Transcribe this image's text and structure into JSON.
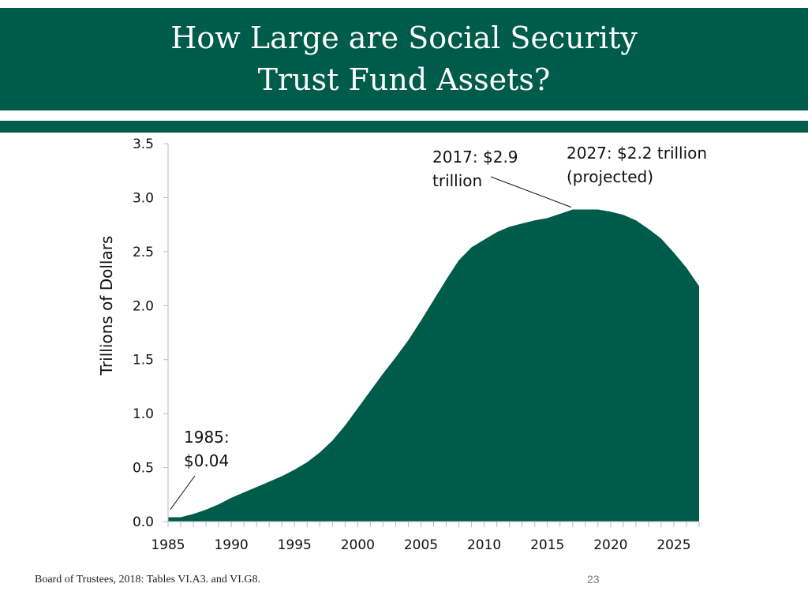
{
  "slide": {
    "title_line1": "How Large are Social Security",
    "title_line2": "Trust Fund Assets?",
    "source": "Board of Trustees, 2018: Tables VI.A3. and VI.G8.",
    "page_number": "23",
    "colors": {
      "brand_green": "#005c4a",
      "fill": "#005c4a"
    }
  },
  "chart_data": {
    "type": "area",
    "title": "",
    "xlabel": "",
    "ylabel": "Trillions of Dollars",
    "xlim": [
      1985,
      2027
    ],
    "ylim": [
      0,
      3.5
    ],
    "yticks": [
      "0.0",
      "0.5",
      "1.0",
      "1.5",
      "2.0",
      "2.5",
      "3.0",
      "3.5"
    ],
    "xticks": [
      "1985",
      "1990",
      "1995",
      "2000",
      "2005",
      "2010",
      "2015",
      "2020",
      "2025"
    ],
    "grid": false,
    "x": [
      1985,
      1986,
      1987,
      1988,
      1989,
      1990,
      1991,
      1992,
      1993,
      1994,
      1995,
      1996,
      1997,
      1998,
      1999,
      2000,
      2001,
      2002,
      2003,
      2004,
      2005,
      2006,
      2007,
      2008,
      2009,
      2010,
      2011,
      2012,
      2013,
      2014,
      2015,
      2016,
      2017,
      2018,
      2019,
      2020,
      2021,
      2022,
      2023,
      2024,
      2025,
      2026,
      2027
    ],
    "series": [
      {
        "values": [
          0.04,
          0.04,
          0.07,
          0.11,
          0.16,
          0.22,
          0.27,
          0.32,
          0.37,
          0.42,
          0.48,
          0.55,
          0.64,
          0.75,
          0.89,
          1.05,
          1.21,
          1.37,
          1.52,
          1.68,
          1.86,
          2.05,
          2.24,
          2.42,
          2.54,
          2.61,
          2.68,
          2.73,
          2.76,
          2.79,
          2.81,
          2.85,
          2.89,
          2.89,
          2.89,
          2.87,
          2.84,
          2.79,
          2.71,
          2.62,
          2.49,
          2.35,
          2.18
        ]
      }
    ],
    "annotations": [
      {
        "text_line1": "1985:",
        "text_line2": "$0.04",
        "x": 1985,
        "y": 0.04
      },
      {
        "text_line1": "2017: $2.9",
        "text_line2": "trillion",
        "x": 2017,
        "y": 2.89
      },
      {
        "text_line1": "2027: $2.2 trillion",
        "text_line2": "(projected)",
        "x": 2027,
        "y": 2.18
      }
    ]
  }
}
